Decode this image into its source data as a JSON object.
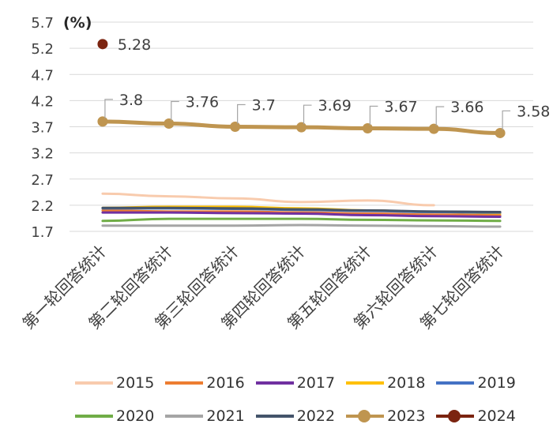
{
  "chart_data": {
    "type": "line",
    "title": "",
    "unit_label": "(%)",
    "xlabel": "",
    "ylabel": "",
    "ylim": [
      1.7,
      5.7
    ],
    "yticks": [
      "5.7",
      "5.2",
      "4.7",
      "4.2",
      "3.7",
      "3.2",
      "2.7",
      "2.2",
      "1.7"
    ],
    "ytick_values": [
      5.7,
      5.2,
      4.7,
      4.2,
      3.7,
      3.2,
      2.7,
      2.2,
      1.7
    ],
    "categories": [
      "第一轮回答统计",
      "第二轮回答统计",
      "第三轮回答统计",
      "第四轮回答统计",
      "第五轮回答统计",
      "第六轮回答统计",
      "第七轮回答统计"
    ],
    "grid": true,
    "legend_position": "bottom",
    "series": [
      {
        "name": "2015",
        "color": "#F8CBAD",
        "values": [
          2.42,
          2.37,
          2.33,
          2.26,
          2.29,
          2.2,
          null
        ]
      },
      {
        "name": "2016",
        "color": "#ED7D31",
        "values": [
          2.1,
          2.08,
          2.08,
          2.06,
          2.04,
          2.02,
          2.01
        ]
      },
      {
        "name": "2017",
        "color": "#7030A0",
        "values": [
          2.06,
          2.06,
          2.05,
          2.04,
          2.01,
          1.99,
          1.98
        ]
      },
      {
        "name": "2018",
        "color": "#FFC000",
        "values": [
          2.15,
          2.17,
          2.17,
          2.14,
          2.1,
          2.07,
          2.05
        ]
      },
      {
        "name": "2019",
        "color": "#4472C4",
        "values": [
          2.14,
          2.14,
          2.13,
          2.11,
          2.09,
          2.07,
          2.06
        ]
      },
      {
        "name": "2020",
        "color": "#70AD47",
        "values": [
          1.9,
          1.94,
          1.94,
          1.94,
          1.92,
          1.91,
          1.9
        ]
      },
      {
        "name": "2021",
        "color": "#A5A5A5",
        "values": [
          1.81,
          1.81,
          1.81,
          1.82,
          1.81,
          1.8,
          1.79
        ]
      },
      {
        "name": "2022",
        "color": "#44546A",
        "values": [
          2.15,
          2.15,
          2.14,
          2.12,
          2.1,
          2.08,
          2.07
        ]
      },
      {
        "name": "2023",
        "color": "#BF9550",
        "marker": true,
        "label_points": true,
        "values": [
          3.8,
          3.76,
          3.7,
          3.69,
          3.67,
          3.66,
          3.58
        ]
      },
      {
        "name": "2024",
        "color": "#7B2410",
        "marker": true,
        "label_points": true,
        "values": [
          5.28,
          null,
          null,
          null,
          null,
          null,
          null
        ]
      }
    ],
    "legend_rows": [
      [
        "2015",
        "2016",
        "2017",
        "2018",
        "2019"
      ],
      [
        "2020",
        "2021",
        "2022",
        "2023",
        "2024"
      ]
    ]
  }
}
